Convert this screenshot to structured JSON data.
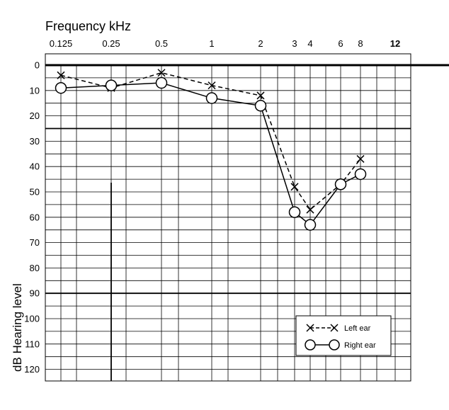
{
  "chart_data": {
    "type": "line",
    "title": "",
    "xlabel": "Frequency kHz",
    "ylabel": "dB Hearing level",
    "x_ticks": [
      "0.125",
      "0.25",
      "0.5",
      "1",
      "2",
      "3",
      "4",
      "6",
      "8",
      "12"
    ],
    "y_ticks": [
      "0",
      "10",
      "20",
      "30",
      "40",
      "50",
      "60",
      "70",
      "80",
      "90",
      "100",
      "110",
      "120"
    ],
    "ylim": [
      0,
      120
    ],
    "y_inverted": true,
    "grid": true,
    "legend_position": "bottom-right",
    "series": [
      {
        "name": "Left ear",
        "marker": "x",
        "line_style": "dashed",
        "x": [
          "0.125",
          "0.25",
          "0.5",
          "1",
          "2",
          "3",
          "4",
          "6",
          "8"
        ],
        "values": [
          4,
          9,
          3,
          8,
          12,
          48,
          57,
          47,
          37
        ]
      },
      {
        "name": "Right ear",
        "marker": "circle",
        "line_style": "solid",
        "x": [
          "0.125",
          "0.25",
          "0.5",
          "1",
          "2",
          "3",
          "4",
          "6",
          "8"
        ],
        "values": [
          9,
          8,
          7,
          13,
          16,
          58,
          63,
          47,
          43
        ]
      }
    ]
  },
  "colors": {
    "line": "#000000",
    "background": "#ffffff"
  }
}
